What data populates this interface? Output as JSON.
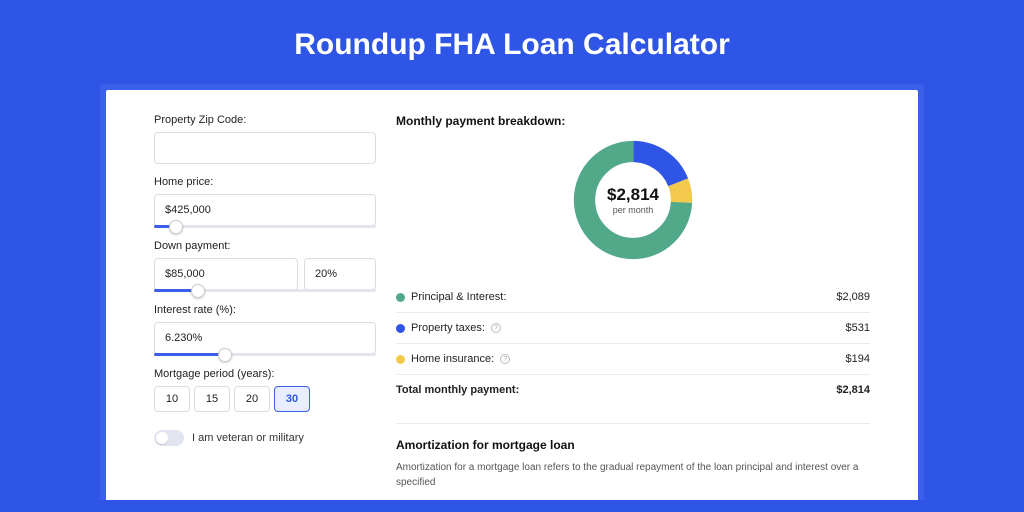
{
  "page": {
    "title": "Roundup FHA Loan Calculator",
    "background_color": "#2f55e6",
    "card_border_color": "#3b5fe8"
  },
  "form": {
    "zip": {
      "label": "Property Zip Code:",
      "value": ""
    },
    "home_price": {
      "label": "Home price:",
      "value": "$425,000",
      "slider_percent": 10
    },
    "down_payment": {
      "label": "Down payment:",
      "value": "$85,000",
      "pct_value": "20%",
      "slider_percent": 20
    },
    "interest_rate": {
      "label": "Interest rate (%):",
      "value": "6.230%",
      "slider_percent": 32
    },
    "mortgage_period": {
      "label": "Mortgage period (years):",
      "options": [
        "10",
        "15",
        "20",
        "30"
      ],
      "selected": "30"
    },
    "veteran": {
      "label": "I am veteran or military",
      "checked": false
    }
  },
  "breakdown": {
    "title": "Monthly payment breakdown:",
    "donut": {
      "amount": "$2,814",
      "sub": "per month",
      "segments": [
        {
          "label": "Principal & Interest:",
          "color": "#52a98a",
          "value": "$2,089",
          "share": 0.742
        },
        {
          "label": "Property taxes:",
          "color": "#2f55e6",
          "value": "$531",
          "share": 0.189,
          "has_info": true
        },
        {
          "label": "Home insurance:",
          "color": "#f2c94c",
          "value": "$194",
          "share": 0.069,
          "has_info": true
        }
      ]
    },
    "total": {
      "label": "Total monthly payment:",
      "value": "$2,814"
    }
  },
  "amortization": {
    "title": "Amortization for mortgage loan",
    "body": "Amortization for a mortgage loan refers to the gradual repayment of the loan principal and interest over a specified"
  }
}
